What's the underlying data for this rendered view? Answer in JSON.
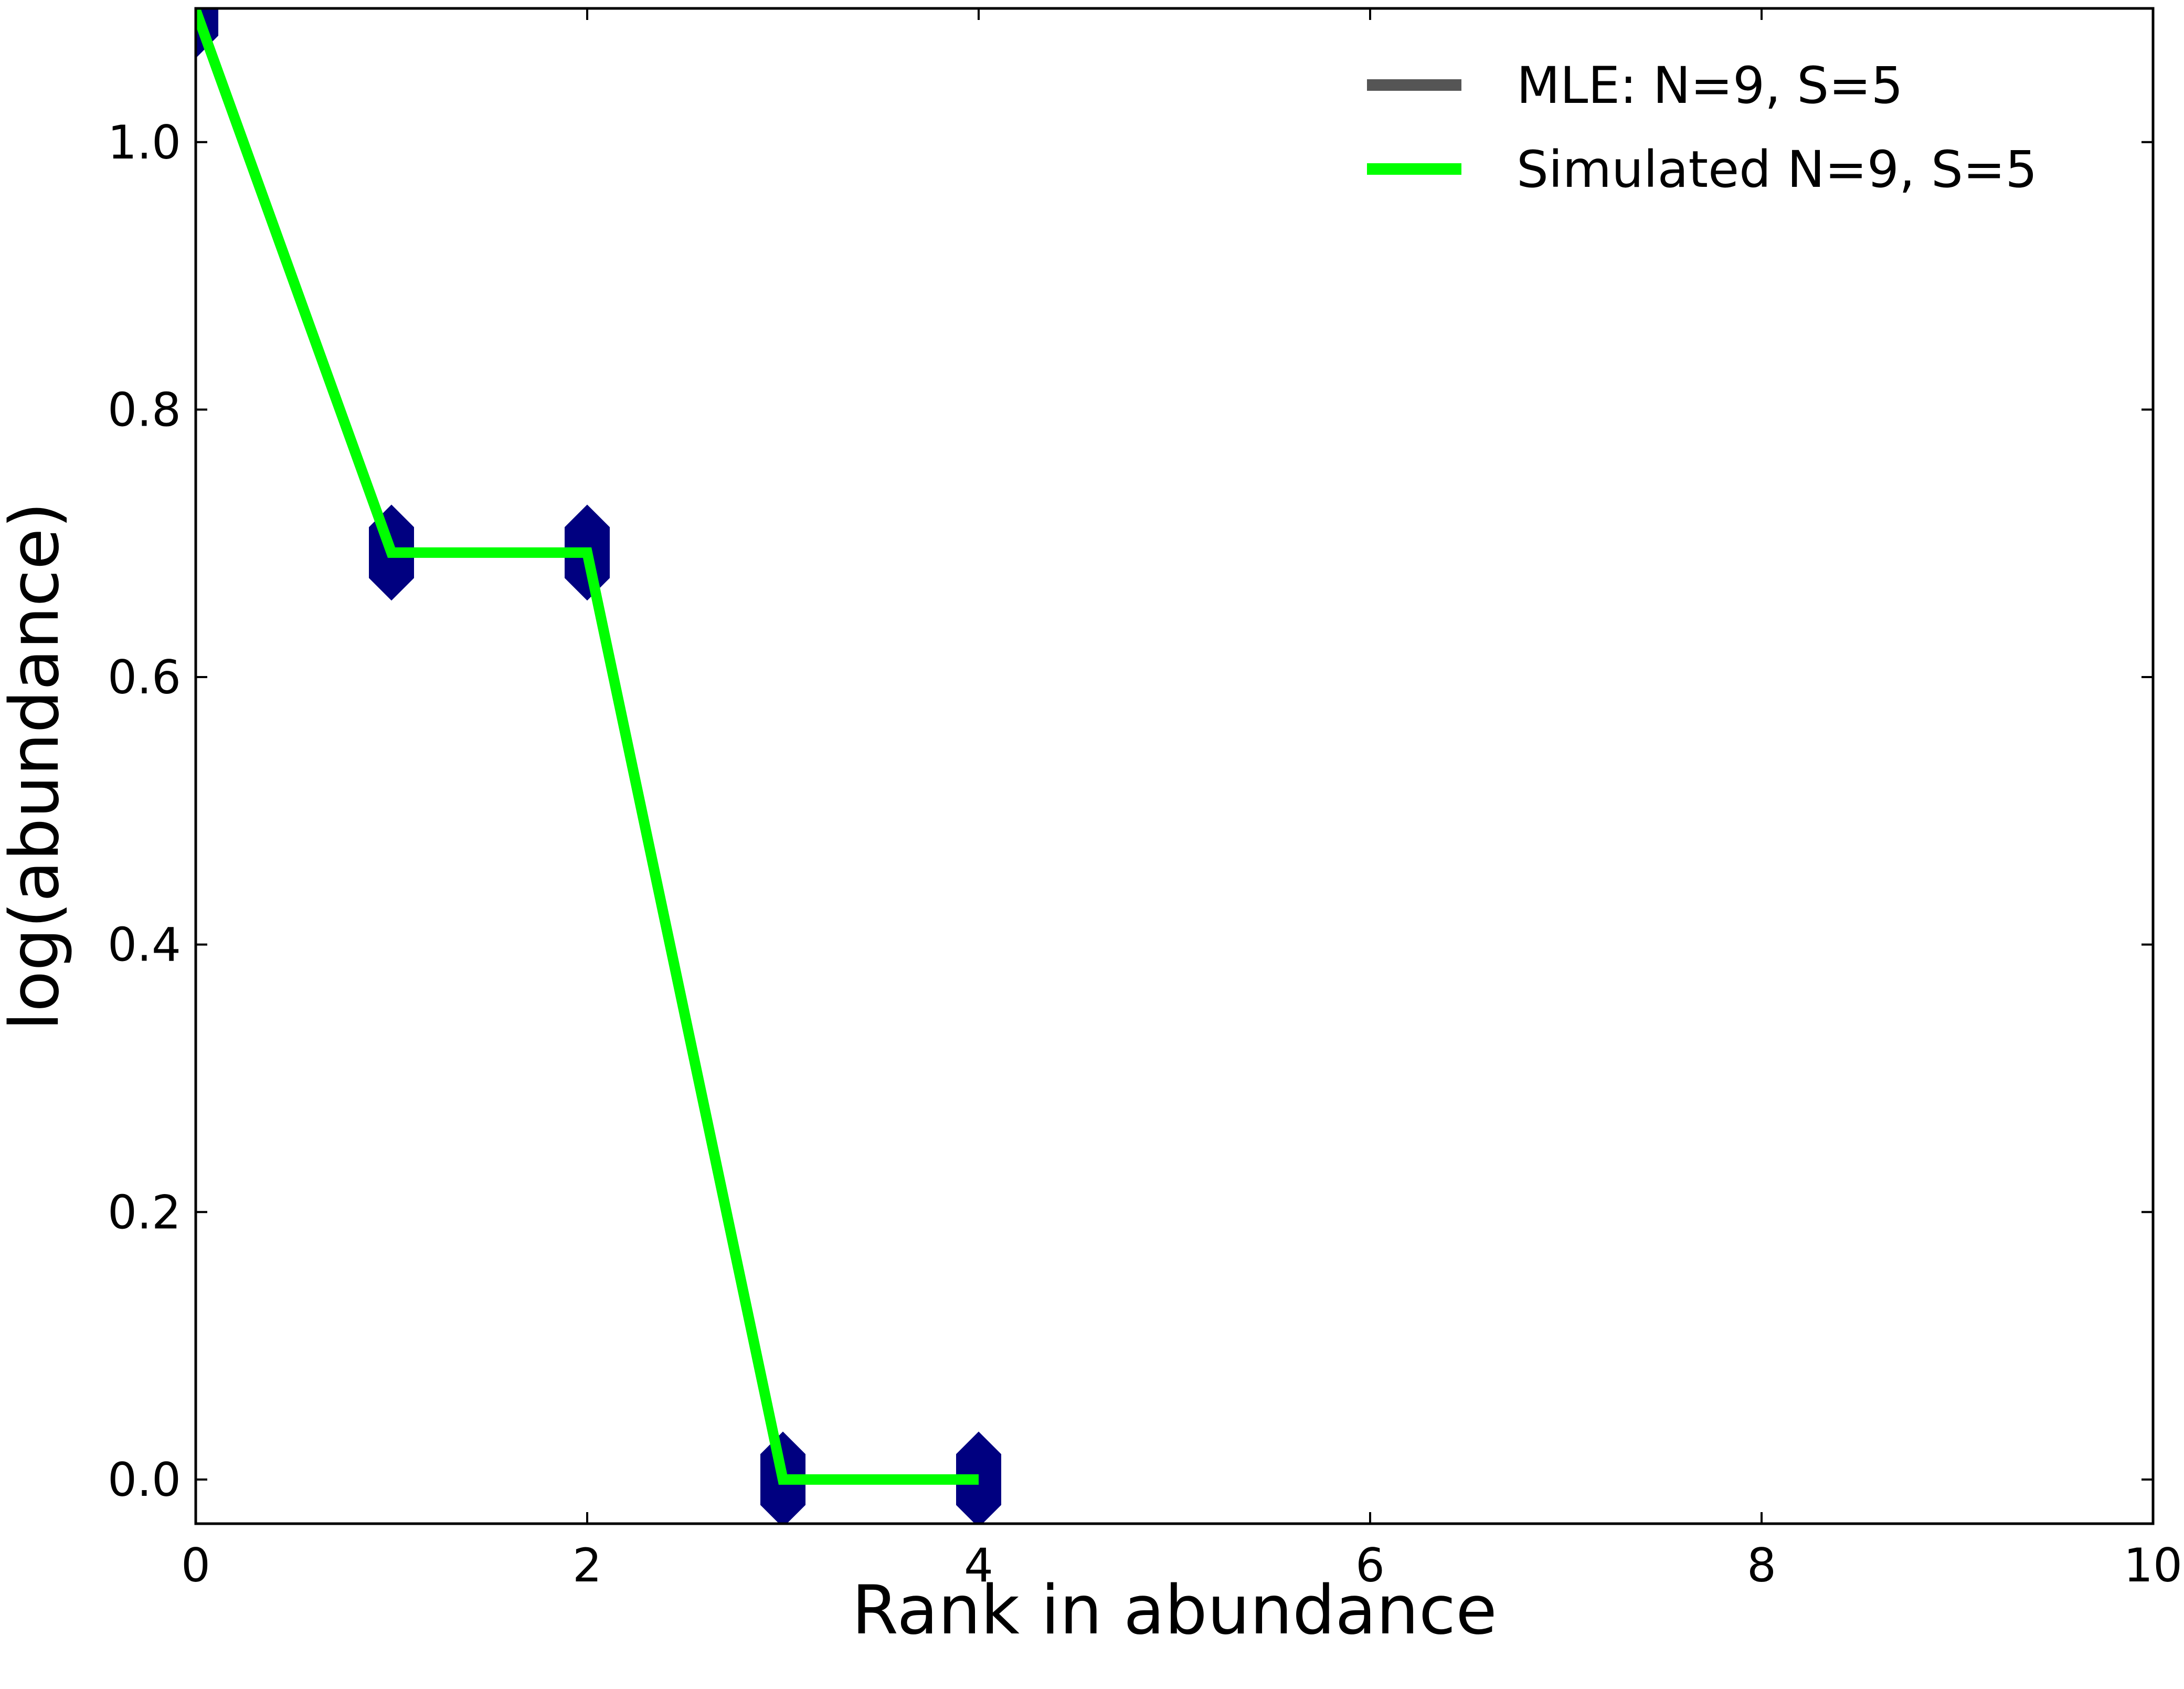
{
  "chart_data": {
    "type": "line",
    "title": "",
    "xlabel": "Rank in abundance",
    "ylabel": "log(abundance)",
    "xlim": [
      0,
      10
    ],
    "ylim": [
      -0.033,
      1.1
    ],
    "grid": false,
    "x_ticks": [
      "0",
      "2",
      "4",
      "6",
      "8",
      "10"
    ],
    "y_ticks": [
      "0.0",
      "0.2",
      "0.4",
      "0.6",
      "0.8",
      "1.0"
    ],
    "legend_position": "top-right",
    "series": [
      {
        "name": "MLE: N=9, S=5",
        "color": "#555555",
        "marker": "hexagon",
        "marker_color": "#000080",
        "x": [
          0,
          1,
          2,
          3,
          4
        ],
        "y": [
          1.0986,
          0.6931,
          0.6931,
          0.0,
          0.0
        ]
      },
      {
        "name": "Simulated N=9, S=5",
        "color": "#00ff00",
        "x": [
          0,
          1,
          2,
          3,
          4
        ],
        "y": [
          1.0986,
          0.6931,
          0.6931,
          0.0,
          0.0
        ]
      }
    ]
  }
}
